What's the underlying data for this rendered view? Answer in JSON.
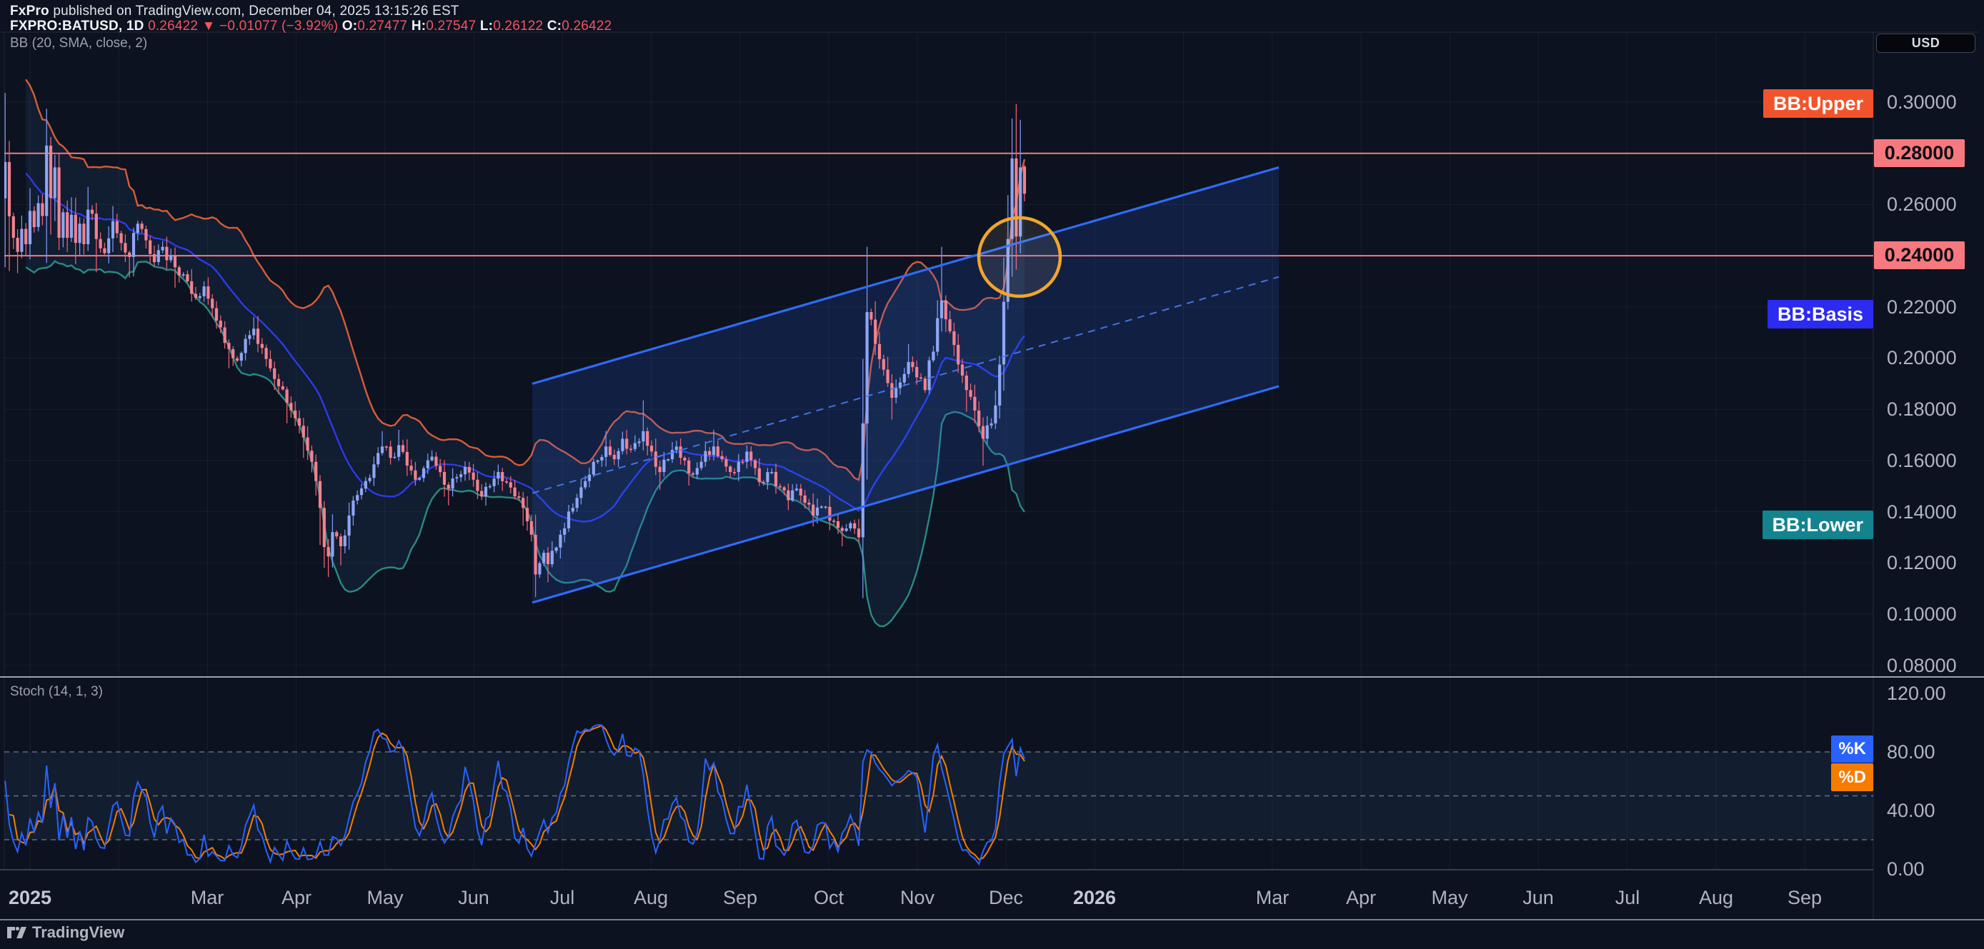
{
  "header": {
    "brand": "FxPro",
    "published": " published on TradingView.com, December 04, 2025 13:15:26 EST",
    "symbol_tf": "FXPRO:BATUSD, 1D",
    "last_price": "0.26422",
    "direction_icon": "▼",
    "change": "−0.01077 (−3.92%)",
    "ohlc": [
      {
        "k": "O:",
        "v": "0.27477"
      },
      {
        "k": "H:",
        "v": "0.27547"
      },
      {
        "k": "L:",
        "v": "0.26122"
      },
      {
        "k": "C:",
        "v": "0.26422"
      }
    ]
  },
  "indicator_labels": {
    "bb": "BB (20, SMA, close, 2)",
    "stoch": "Stoch (14, 1, 3)"
  },
  "axis_right": {
    "currency": "USD",
    "price_ticks": [
      {
        "label": "0.30000",
        "value": 0.3
      },
      {
        "label": "0.26000",
        "value": 0.26
      },
      {
        "label": "0.22000",
        "value": 0.22
      },
      {
        "label": "0.20000",
        "value": 0.2
      },
      {
        "label": "0.18000",
        "value": 0.18
      },
      {
        "label": "0.16000",
        "value": 0.16
      },
      {
        "label": "0.14000",
        "value": 0.14
      },
      {
        "label": "0.12000",
        "value": 0.12
      },
      {
        "label": "0.10000",
        "value": 0.1
      },
      {
        "label": "0.08000",
        "value": 0.08
      }
    ],
    "price_badges": [
      {
        "label": "0.28000",
        "value": 0.28
      },
      {
        "label": "0.24000",
        "value": 0.24
      }
    ],
    "stoch_ticks": [
      {
        "label": "120.00",
        "value": 120
      },
      {
        "label": "80.00",
        "value": 80
      },
      {
        "label": "40.00",
        "value": 40
      },
      {
        "label": "0.00",
        "value": 0
      }
    ]
  },
  "series_badges": {
    "bb_upper": "BB:Upper",
    "bb_basis": "BB:Basis",
    "bb_lower": "BB:Lower",
    "k": "%K",
    "d": "%D"
  },
  "time_axis": {
    "labels": [
      {
        "text": "2025",
        "m": 0,
        "bold": true
      },
      {
        "text": "Mar",
        "m": 2
      },
      {
        "text": "Apr",
        "m": 3
      },
      {
        "text": "May",
        "m": 4
      },
      {
        "text": "Jun",
        "m": 5
      },
      {
        "text": "Jul",
        "m": 6
      },
      {
        "text": "Aug",
        "m": 7
      },
      {
        "text": "Sep",
        "m": 8
      },
      {
        "text": "Oct",
        "m": 9
      },
      {
        "text": "Nov",
        "m": 10
      },
      {
        "text": "Dec",
        "m": 11
      },
      {
        "text": "2026",
        "m": 12,
        "bold": true
      },
      {
        "text": "Mar",
        "m": 14
      },
      {
        "text": "Apr",
        "m": 15
      },
      {
        "text": "May",
        "m": 16
      },
      {
        "text": "Jun",
        "m": 17
      },
      {
        "text": "Jul",
        "m": 18
      },
      {
        "text": "Aug",
        "m": 19
      },
      {
        "text": "Sep",
        "m": 20
      }
    ]
  },
  "footer": {
    "logo_text": "TradingView"
  },
  "chart_data": {
    "type": "candlestick",
    "symbol": "FXPRO:BATUSD",
    "timeframe": "1D",
    "title": "BAT/USD daily with Bollinger Bands, rising parallel channel and Stochastic",
    "ylim": [
      0.0755,
      0.3273
    ],
    "stoch_ylim": [
      0,
      131
    ],
    "indicators": [
      {
        "name": "Bollinger Bands",
        "length": 20,
        "source": "close",
        "mult": 2
      },
      {
        "name": "Stochastic",
        "k": 14,
        "smooth": 1,
        "d": 3
      }
    ],
    "last_bar": {
      "o": 0.27477,
      "h": 0.27547,
      "l": 0.26122,
      "c": 0.26422
    },
    "price_anchors": [
      [
        -20,
        0.2925,
        0,
        0
      ],
      [
        -18,
        0.301,
        0,
        0
      ],
      [
        -16,
        0.2845,
        0,
        0
      ],
      [
        -14,
        0.2915,
        0,
        0
      ],
      [
        -12,
        0.2705,
        0,
        0
      ],
      [
        -10,
        0.2755,
        0,
        0
      ],
      [
        -8,
        0.2565,
        0,
        0
      ],
      [
        -6,
        0.2766,
        0.3036,
        0.2355
      ],
      [
        -5,
        0.2554,
        0,
        0.234
      ],
      [
        -4,
        0.247,
        0,
        0
      ],
      [
        -3,
        0.2415,
        0,
        0.2332
      ],
      [
        -2,
        0.2505,
        0,
        0
      ],
      [
        -1,
        0.2445,
        0,
        0
      ],
      [
        0,
        0.2575,
        0,
        0
      ],
      [
        1,
        0.2512,
        0,
        0
      ],
      [
        2,
        0.2605,
        0,
        0
      ],
      [
        3,
        0.2555,
        0,
        0
      ],
      [
        4,
        0.283,
        0.2891,
        0
      ],
      [
        5,
        0.2625,
        0,
        0
      ],
      [
        6,
        0.2745,
        0,
        0
      ],
      [
        7,
        0.247,
        0,
        0
      ],
      [
        8,
        0.257,
        0,
        0
      ],
      [
        9,
        0.247,
        0,
        0
      ],
      [
        10,
        0.256,
        0,
        0
      ],
      [
        11,
        0.245,
        0,
        0.238
      ],
      [
        12,
        0.2525,
        0,
        0
      ],
      [
        13,
        0.2445,
        0,
        0
      ],
      [
        14,
        0.258,
        0,
        0
      ],
      [
        16,
        0.2465,
        0,
        0.2335
      ],
      [
        18,
        0.241,
        0,
        0
      ],
      [
        20,
        0.2535,
        0,
        0
      ],
      [
        22,
        0.245,
        0,
        0
      ],
      [
        24,
        0.2395,
        0,
        0.2315
      ],
      [
        26,
        0.2525,
        0,
        0
      ],
      [
        28,
        0.246,
        0,
        0
      ],
      [
        30,
        0.2375,
        0,
        0
      ],
      [
        32,
        0.2435,
        0,
        0
      ],
      [
        35,
        0.2355,
        0,
        0.2275
      ],
      [
        38,
        0.23,
        0,
        0
      ],
      [
        40,
        0.2235,
        0,
        0
      ],
      [
        42,
        0.228,
        0,
        0
      ],
      [
        44,
        0.2195,
        0,
        0
      ],
      [
        46,
        0.212,
        0,
        0
      ],
      [
        48,
        0.2035,
        0,
        0.196
      ],
      [
        50,
        0.199,
        0,
        0
      ],
      [
        52,
        0.2075,
        0,
        0
      ],
      [
        54,
        0.2115,
        0.216,
        0
      ],
      [
        56,
        0.204,
        0,
        0
      ],
      [
        58,
        0.196,
        0,
        0
      ],
      [
        60,
        0.189,
        0,
        0
      ],
      [
        62,
        0.1825,
        0,
        0.1745
      ],
      [
        64,
        0.1765,
        0,
        0
      ],
      [
        66,
        0.169,
        0,
        0.161
      ],
      [
        68,
        0.1595,
        0,
        0
      ],
      [
        70,
        0.1415,
        0,
        0.127
      ],
      [
        72,
        0.1225,
        0,
        0.1145
      ],
      [
        73,
        0.132,
        0,
        0
      ],
      [
        75,
        0.1265,
        0,
        0.119
      ],
      [
        77,
        0.1385,
        0,
        0
      ],
      [
        79,
        0.1465,
        0,
        0
      ],
      [
        81,
        0.152,
        0,
        0
      ],
      [
        83,
        0.1585,
        0,
        0
      ],
      [
        85,
        0.1655,
        0.1715,
        0
      ],
      [
        87,
        0.161,
        0,
        0
      ],
      [
        89,
        0.166,
        0.172,
        0
      ],
      [
        91,
        0.158,
        0,
        0
      ],
      [
        93,
        0.1525,
        0,
        0
      ],
      [
        95,
        0.157,
        0,
        0
      ],
      [
        97,
        0.1615,
        0,
        0
      ],
      [
        99,
        0.1555,
        0,
        0
      ],
      [
        101,
        0.149,
        0,
        0.1425
      ],
      [
        103,
        0.1535,
        0,
        0
      ],
      [
        105,
        0.1575,
        0,
        0
      ],
      [
        107,
        0.1525,
        0,
        0
      ],
      [
        109,
        0.146,
        0,
        0
      ],
      [
        111,
        0.15,
        0,
        0
      ],
      [
        113,
        0.1555,
        0,
        0
      ],
      [
        115,
        0.1515,
        0,
        0
      ],
      [
        117,
        0.146,
        0,
        0
      ],
      [
        119,
        0.1415,
        0,
        0.1345
      ],
      [
        121,
        0.131,
        0,
        0
      ],
      [
        122,
        0.1155,
        0,
        0.1077
      ],
      [
        124,
        0.124,
        0,
        0
      ],
      [
        125,
        0.1195,
        0,
        0.1125
      ],
      [
        127,
        0.126,
        0,
        0
      ],
      [
        129,
        0.1335,
        0,
        0
      ],
      [
        131,
        0.1415,
        0,
        0
      ],
      [
        133,
        0.1495,
        0,
        0
      ],
      [
        135,
        0.1545,
        0,
        0
      ],
      [
        137,
        0.16,
        0,
        0
      ],
      [
        139,
        0.1655,
        0.1715,
        0
      ],
      [
        141,
        0.1605,
        0,
        0
      ],
      [
        143,
        0.1685,
        0,
        0
      ],
      [
        145,
        0.1645,
        0,
        0
      ],
      [
        148,
        0.1715,
        0.1835,
        0
      ],
      [
        150,
        0.1635,
        0,
        0
      ],
      [
        152,
        0.1555,
        0,
        0.1485
      ],
      [
        154,
        0.1605,
        0,
        0
      ],
      [
        156,
        0.1655,
        0,
        0
      ],
      [
        158,
        0.16,
        0,
        0
      ],
      [
        160,
        0.1545,
        0,
        0
      ],
      [
        162,
        0.1595,
        0,
        0
      ],
      [
        165,
        0.1655,
        0.172,
        0
      ],
      [
        167,
        0.1605,
        0,
        0
      ],
      [
        169,
        0.1555,
        0,
        0
      ],
      [
        171,
        0.1595,
        0,
        0
      ],
      [
        173,
        0.1635,
        0,
        0
      ],
      [
        175,
        0.157,
        0,
        0
      ],
      [
        177,
        0.1515,
        0,
        0
      ],
      [
        179,
        0.1555,
        0,
        0
      ],
      [
        181,
        0.1495,
        0,
        0
      ],
      [
        183,
        0.1445,
        0,
        0
      ],
      [
        185,
        0.149,
        0,
        0
      ],
      [
        187,
        0.1435,
        0,
        0
      ],
      [
        189,
        0.1385,
        0,
        0
      ],
      [
        191,
        0.142,
        0,
        0
      ],
      [
        193,
        0.1365,
        0,
        0
      ],
      [
        196,
        0.1325,
        0,
        0.1265
      ],
      [
        198,
        0.1355,
        0,
        0
      ],
      [
        200,
        0.13,
        0,
        0
      ],
      [
        201,
        0.1745,
        0,
        0
      ],
      [
        202,
        0.218,
        0.2435,
        0
      ],
      [
        204,
        0.2055,
        0,
        0
      ],
      [
        206,
        0.1955,
        0,
        0
      ],
      [
        208,
        0.1845,
        0,
        0.176
      ],
      [
        210,
        0.1905,
        0,
        0
      ],
      [
        212,
        0.1985,
        0.2055,
        0
      ],
      [
        214,
        0.1925,
        0,
        0
      ],
      [
        216,
        0.1875,
        0,
        0
      ],
      [
        218,
        0.2025,
        0,
        0
      ],
      [
        220,
        0.2225,
        0.2435,
        0
      ],
      [
        222,
        0.2105,
        0,
        0
      ],
      [
        224,
        0.1975,
        0,
        0
      ],
      [
        226,
        0.1875,
        0,
        0.179
      ],
      [
        228,
        0.1795,
        0,
        0
      ],
      [
        230,
        0.1685,
        0,
        0.158
      ],
      [
        232,
        0.1745,
        0,
        0
      ],
      [
        233,
        0.1815,
        0,
        0
      ],
      [
        234,
        0.1975,
        0,
        0
      ],
      [
        235,
        0.222,
        0,
        0
      ],
      [
        236,
        0.2465,
        0,
        0
      ],
      [
        237,
        0.278,
        0.2894,
        0
      ],
      [
        238,
        0.2475,
        0,
        0.2345
      ],
      [
        239,
        0.2745,
        0,
        0
      ],
      [
        240,
        0.2642,
        0,
        0
      ]
    ],
    "hlines": [
      0.28,
      0.24
    ],
    "channel": {
      "x_start": 745,
      "x_end": 1790,
      "price_top_start": 0.19,
      "price_top_end": 0.2745,
      "price_width": 0.0855
    },
    "ellipse": {
      "cx": 1427,
      "cy_price": 0.2395,
      "rx": 57,
      "ry": 55
    },
    "stoch_levels": [
      80,
      50,
      20
    ],
    "colors": {
      "bg": "#0c121f",
      "up_body": "#8ea7f3",
      "up_wick": "#7b95ee",
      "dn_body": "#f2828f",
      "dn_wick": "#ee5f72",
      "bb_upper": "#d95b38",
      "bb_basis": "#2c3be8",
      "bb_lower": "#2a8a81",
      "bb_fill": "rgba(72,132,212,0.10)",
      "channel_line": "#2f6bf5",
      "channel_mid": "#4a7cf2",
      "channel_fill": "rgba(49,99,245,0.17)",
      "hline": "#f7797f",
      "ellipse_stroke": "#f0a62c",
      "ellipse_fill": "rgba(235,214,165,0.10)",
      "k_line": "#2962ff",
      "d_line": "#f57c00",
      "stoch_band": "rgba(82,130,196,0.10)",
      "stoch_dash": "rgba(170,180,200,0.55)",
      "grid": "rgba(255,255,255,0.05)",
      "separator": "#9aa2b1",
      "badge_bb_upper": "#f1542c",
      "badge_bb_basis": "#2b2bf2",
      "badge_bb_lower": "#13838e",
      "badge_k": "#2962ff",
      "badge_d": "#f57c00",
      "badge_price": "#f7797f"
    }
  }
}
